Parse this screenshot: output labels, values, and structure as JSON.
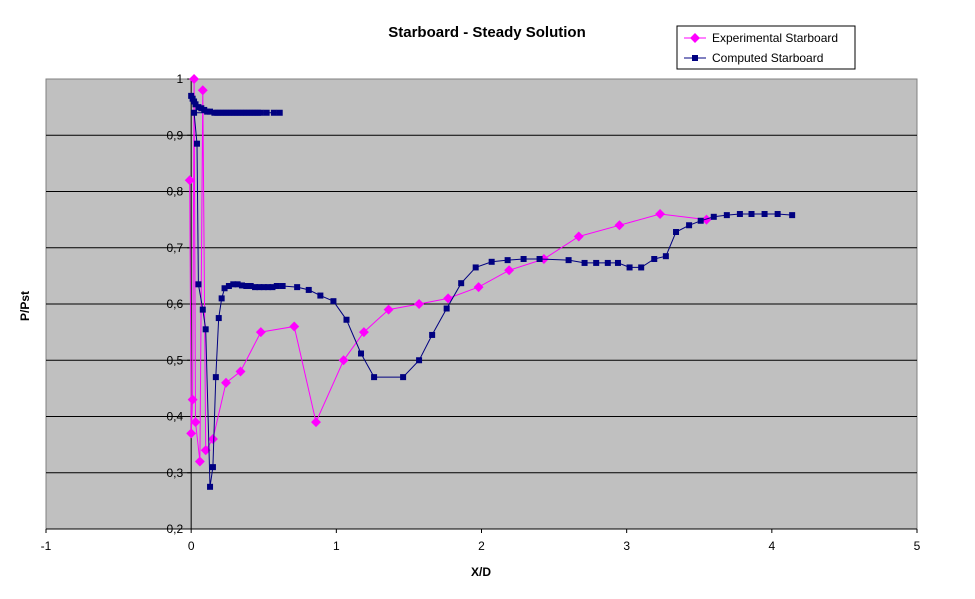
{
  "chart_data": {
    "type": "scatter",
    "title": "Starboard - Steady Solution",
    "xlabel": "X/D",
    "ylabel": "P/Pst",
    "xlim": [
      -1,
      5
    ],
    "ylim": [
      0.2,
      1
    ],
    "xticks": [
      "-1",
      "0",
      "1",
      "2",
      "3",
      "4",
      "5"
    ],
    "yticks": [
      "0,2",
      "0,3",
      "0,4",
      "0,5",
      "0,6",
      "0,7",
      "0,8",
      "0,9",
      "1"
    ],
    "xtick_values": [
      -1,
      0,
      1,
      2,
      3,
      4,
      5
    ],
    "ytick_values": [
      0.2,
      0.3,
      0.4,
      0.5,
      0.6,
      0.7,
      0.8,
      0.9,
      1.0
    ],
    "grid": "horizontal",
    "background": "#c0c0c0",
    "legend_position": "top-right",
    "series": [
      {
        "name": "Experimental Starboard",
        "color": "#ff00ff",
        "marker": "diamond",
        "points": [
          [
            -0.01,
            0.82
          ],
          [
            0.0,
            0.37
          ],
          [
            0.01,
            0.43
          ],
          [
            0.02,
            1.0
          ],
          [
            0.03,
            0.39
          ],
          [
            0.06,
            0.32
          ],
          [
            0.08,
            0.98
          ],
          [
            0.1,
            0.34
          ],
          [
            0.15,
            0.36
          ],
          [
            0.24,
            0.46
          ],
          [
            0.34,
            0.48
          ],
          [
            0.48,
            0.55
          ],
          [
            0.71,
            0.56
          ],
          [
            0.86,
            0.39
          ],
          [
            1.05,
            0.5
          ],
          [
            1.19,
            0.55
          ],
          [
            1.36,
            0.59
          ],
          [
            1.57,
            0.6
          ],
          [
            1.77,
            0.61
          ],
          [
            1.98,
            0.63
          ],
          [
            2.19,
            0.66
          ],
          [
            2.43,
            0.68
          ],
          [
            2.67,
            0.72
          ],
          [
            2.95,
            0.74
          ],
          [
            3.23,
            0.76
          ],
          [
            3.55,
            0.75
          ]
        ]
      },
      {
        "name": "Computed Starboard",
        "color": "#000080",
        "marker": "square",
        "points": [
          [
            0.0,
            0.97
          ],
          [
            0.01,
            0.965
          ],
          [
            0.02,
            0.96
          ],
          [
            0.03,
            0.955
          ],
          [
            0.05,
            0.95
          ],
          [
            0.07,
            0.948
          ],
          [
            0.09,
            0.945
          ],
          [
            0.11,
            0.942
          ],
          [
            0.13,
            0.942
          ],
          [
            0.16,
            0.94
          ],
          [
            0.18,
            0.94
          ],
          [
            0.2,
            0.94
          ],
          [
            0.22,
            0.94
          ],
          [
            0.24,
            0.94
          ],
          [
            0.26,
            0.94
          ],
          [
            0.28,
            0.94
          ],
          [
            0.3,
            0.94
          ],
          [
            0.32,
            0.94
          ],
          [
            0.34,
            0.94
          ],
          [
            0.36,
            0.94
          ],
          [
            0.38,
            0.94
          ],
          [
            0.4,
            0.94
          ],
          [
            0.42,
            0.94
          ],
          [
            0.44,
            0.94
          ],
          [
            0.46,
            0.94
          ],
          [
            0.48,
            0.94
          ],
          [
            0.52,
            0.94
          ],
          [
            0.57,
            0.94
          ],
          [
            0.61,
            0.94
          ],
          [
            0.02,
            0.94
          ],
          [
            0.04,
            0.885
          ],
          [
            0.05,
            0.635
          ],
          [
            0.08,
            0.59
          ],
          [
            0.1,
            0.555
          ],
          [
            0.13,
            0.275
          ],
          [
            0.15,
            0.31
          ],
          [
            0.17,
            0.47
          ],
          [
            0.19,
            0.575
          ],
          [
            0.21,
            0.61
          ],
          [
            0.23,
            0.628
          ],
          [
            0.26,
            0.632
          ],
          [
            0.29,
            0.635
          ],
          [
            0.32,
            0.635
          ],
          [
            0.35,
            0.633
          ],
          [
            0.38,
            0.632
          ],
          [
            0.41,
            0.632
          ],
          [
            0.44,
            0.63
          ],
          [
            0.47,
            0.63
          ],
          [
            0.5,
            0.63
          ],
          [
            0.53,
            0.63
          ],
          [
            0.56,
            0.63
          ],
          [
            0.59,
            0.632
          ],
          [
            0.63,
            0.632
          ],
          [
            0.73,
            0.63
          ],
          [
            0.81,
            0.625
          ],
          [
            0.89,
            0.615
          ],
          [
            0.98,
            0.605
          ],
          [
            1.07,
            0.572
          ],
          [
            1.17,
            0.512
          ],
          [
            1.26,
            0.47
          ],
          [
            1.46,
            0.47
          ],
          [
            1.57,
            0.5
          ],
          [
            1.66,
            0.545
          ],
          [
            1.76,
            0.592
          ],
          [
            1.86,
            0.637
          ],
          [
            1.96,
            0.665
          ],
          [
            2.07,
            0.675
          ],
          [
            2.18,
            0.678
          ],
          [
            2.29,
            0.68
          ],
          [
            2.4,
            0.68
          ],
          [
            2.6,
            0.678
          ],
          [
            2.71,
            0.673
          ],
          [
            2.79,
            0.673
          ],
          [
            2.87,
            0.673
          ],
          [
            2.94,
            0.673
          ],
          [
            3.02,
            0.665
          ],
          [
            3.1,
            0.665
          ],
          [
            3.19,
            0.68
          ],
          [
            3.27,
            0.685
          ],
          [
            3.34,
            0.728
          ],
          [
            3.43,
            0.74
          ],
          [
            3.51,
            0.748
          ],
          [
            3.6,
            0.755
          ],
          [
            3.69,
            0.758
          ],
          [
            3.78,
            0.76
          ],
          [
            3.86,
            0.76
          ],
          [
            3.95,
            0.76
          ],
          [
            4.04,
            0.76
          ],
          [
            4.14,
            0.758
          ]
        ]
      }
    ]
  }
}
